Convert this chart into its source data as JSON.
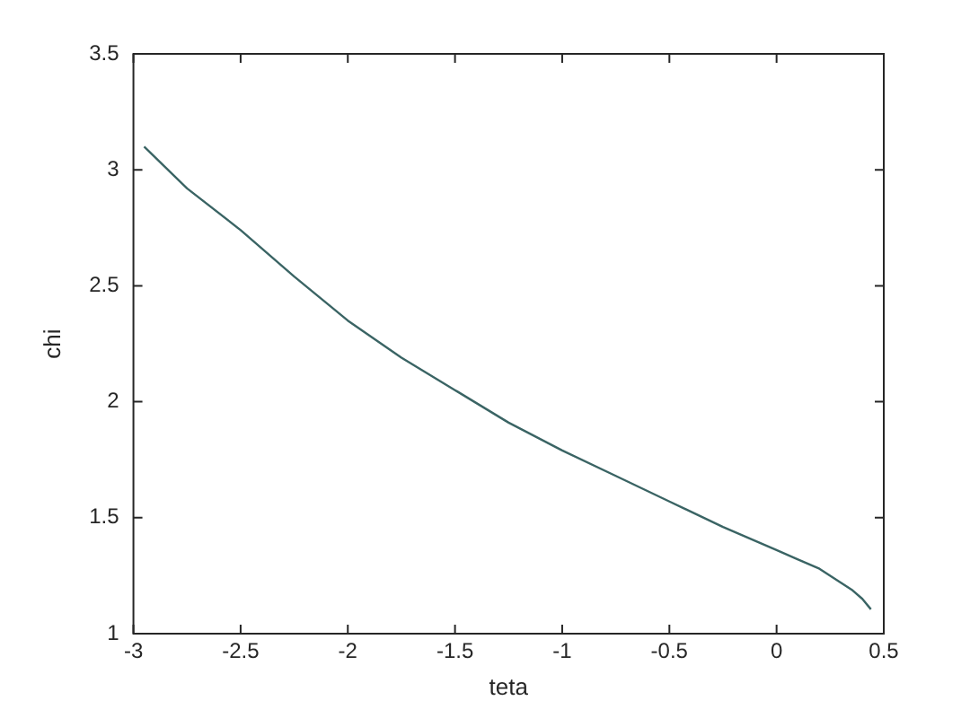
{
  "chart_data": {
    "type": "line",
    "xlabel": "teta",
    "ylabel": "chi",
    "xlim": [
      -3,
      0.5
    ],
    "xticks": [
      -3,
      -2.5,
      -2,
      -1.5,
      -1,
      -0.5,
      0,
      0.5
    ],
    "ylim": [
      1,
      3.5
    ],
    "yticks": [
      1,
      1.5,
      2,
      2.5,
      3,
      3.5
    ],
    "marker": "none",
    "line_style": "solid",
    "series": [
      {
        "color": "#3a6464",
        "x": [
          -2.95,
          -2.75,
          -2.5,
          -2.25,
          -2.0,
          -1.75,
          -1.5,
          -1.25,
          -1.0,
          -0.75,
          -0.5,
          -0.25,
          0,
          0.1,
          0.2,
          0.3,
          0.35,
          0.4,
          0.44
        ],
        "values": [
          3.1,
          2.92,
          2.74,
          2.54,
          2.35,
          2.19,
          2.05,
          1.91,
          1.79,
          1.68,
          1.57,
          1.46,
          1.36,
          1.32,
          1.28,
          1.22,
          1.19,
          1.15,
          1.105
        ]
      }
    ]
  }
}
